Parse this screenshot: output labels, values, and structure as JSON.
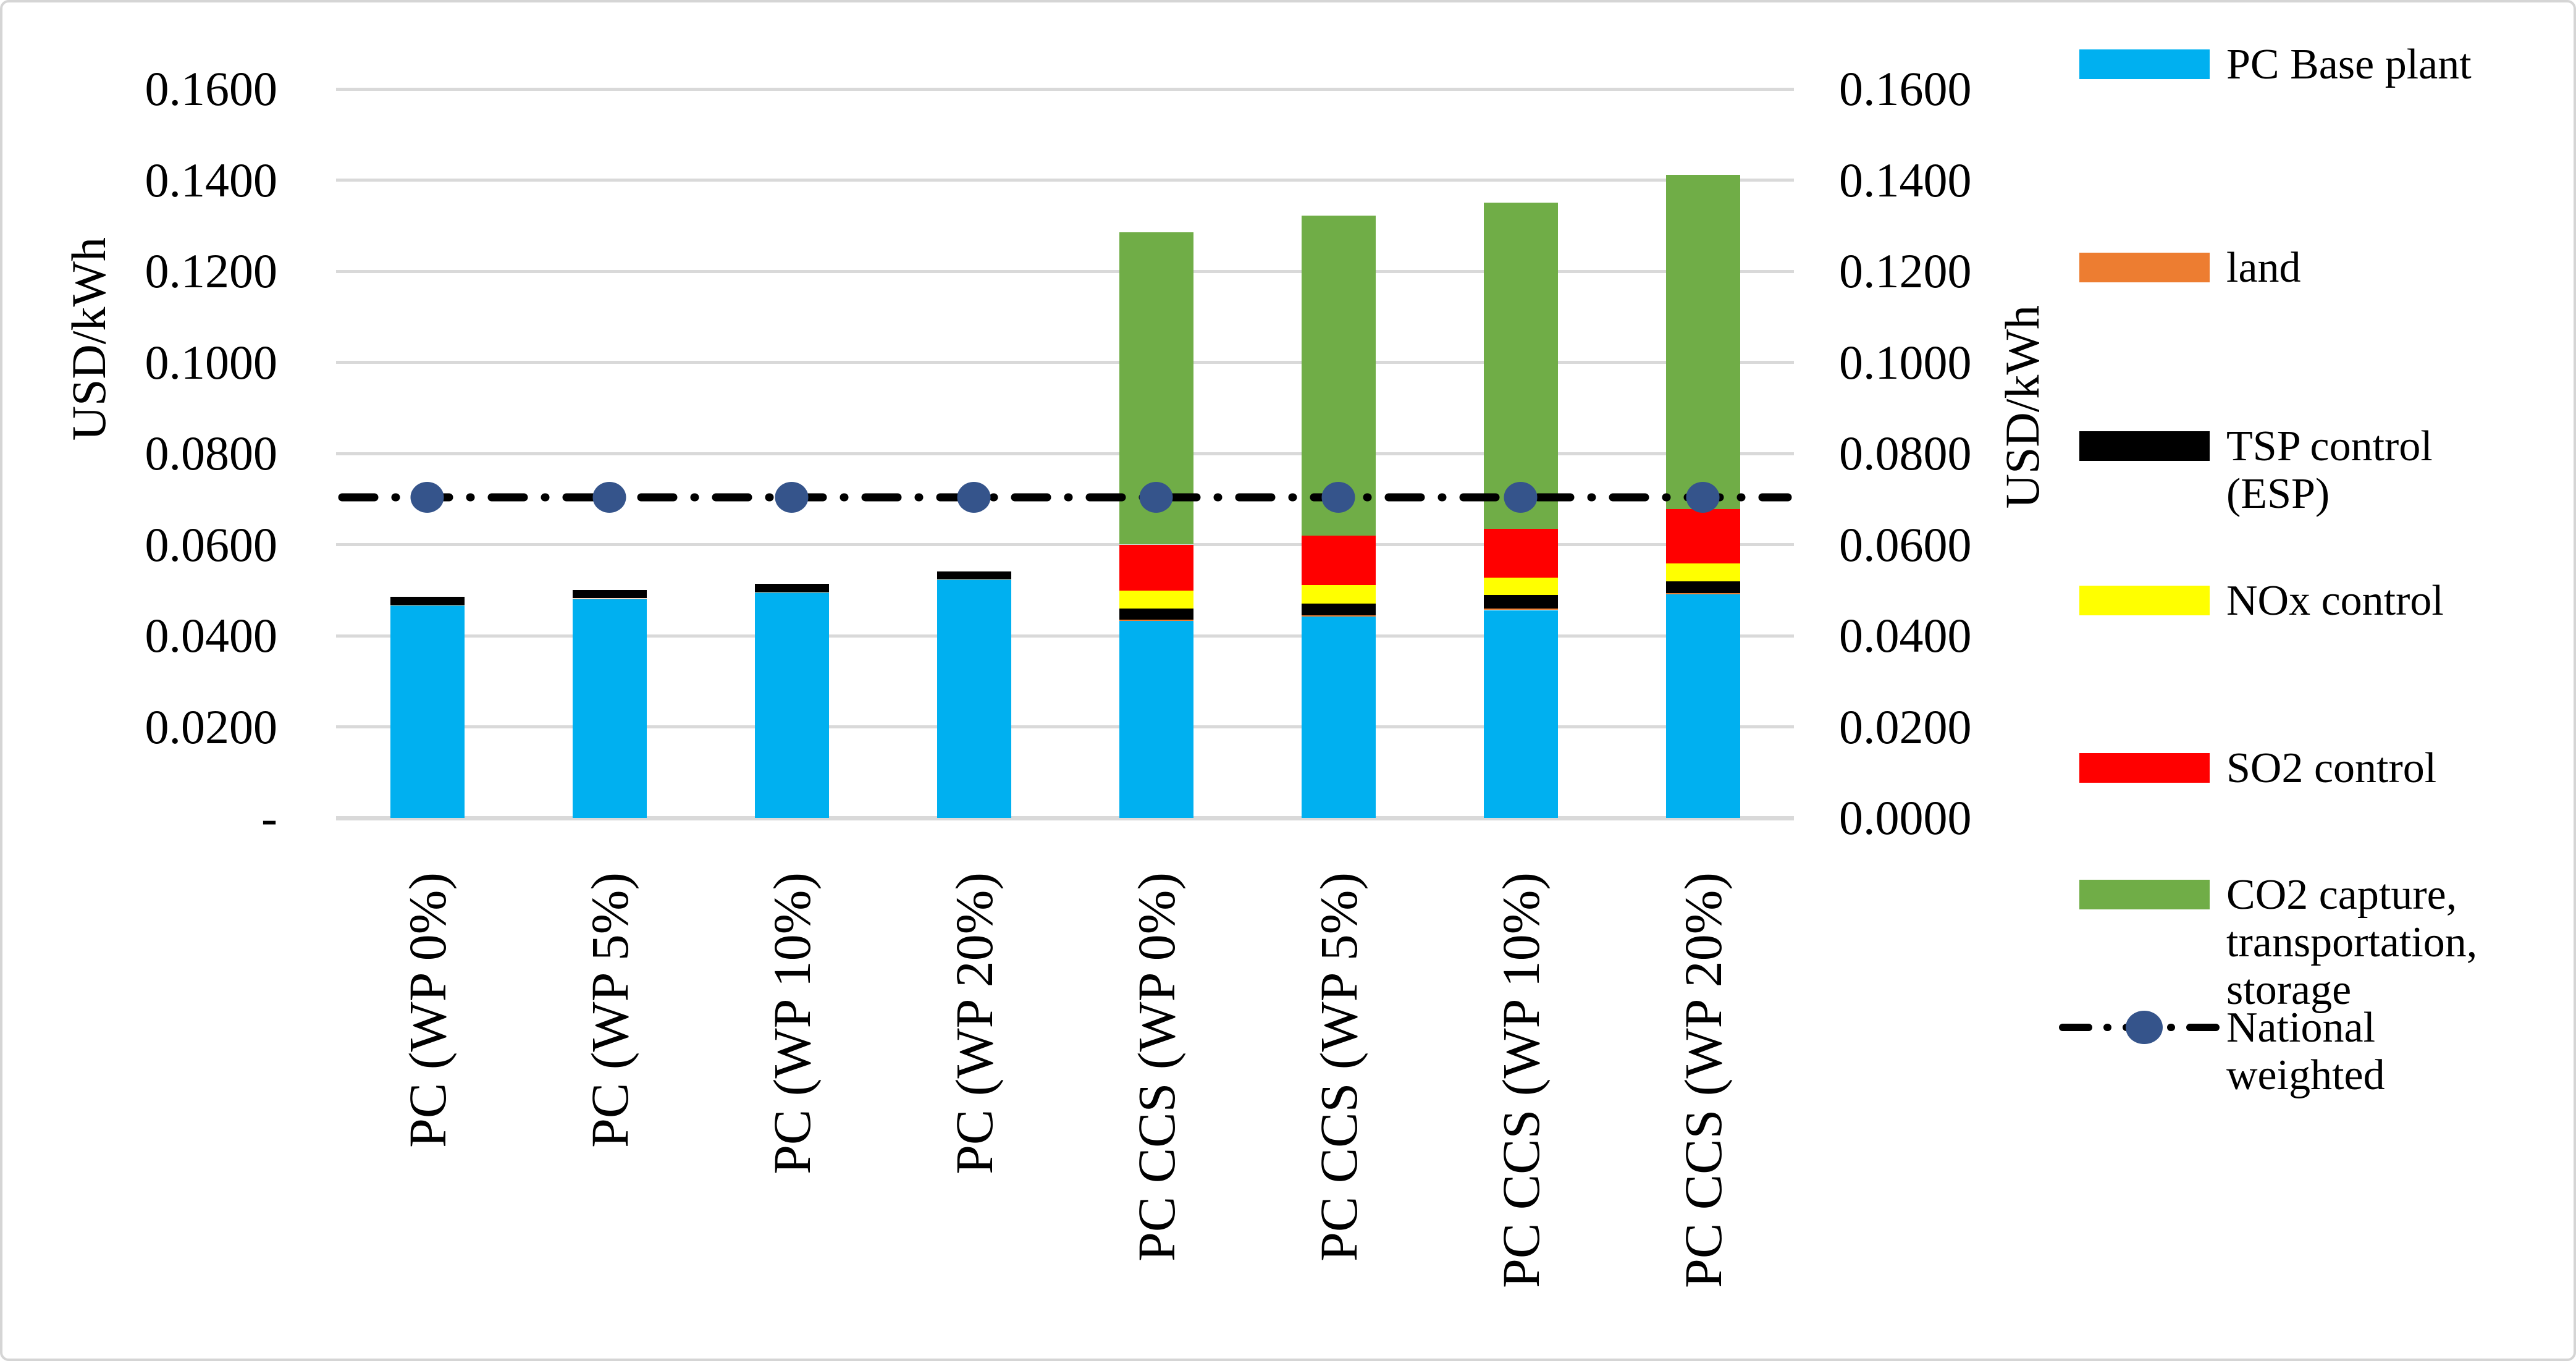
{
  "chart_data": {
    "type": "bar",
    "stacked": true,
    "title": "",
    "ylabel_left": "USD/kWh",
    "ylabel_right": "USD/kWh",
    "ylim": [
      0,
      0.16
    ],
    "ytick_step": 0.02,
    "grid": true,
    "legend_position": "right",
    "yticks_left": [
      "0.1600",
      "0.1400",
      "0.1200",
      "0.1000",
      "0.0800",
      "0.0600",
      "0.0400",
      "0.0200",
      "-"
    ],
    "yticks_right": [
      "0.1600",
      "0.1400",
      "0.1200",
      "0.1000",
      "0.0800",
      "0.0600",
      "0.0400",
      "0.0200",
      "0.0000"
    ],
    "categories": [
      "PC (WP 0%)",
      "PC (WP 5%)",
      "PC (WP 10%)",
      "PC (WP 20%)",
      "PC CCS (WP 0%)",
      "PC CCS (WP 5%)",
      "PC CCS (WP 10%)",
      "PC CCS (WP 20%)"
    ],
    "series": [
      {
        "name": "PC Base plant",
        "legend_label": "PC Base plant",
        "color": "#00B0F0",
        "values": [
          0.0467,
          0.0481,
          0.0495,
          0.0524,
          0.0432,
          0.0442,
          0.0456,
          0.0491
        ]
      },
      {
        "name": "land",
        "legend_label": "land",
        "color": "#ED7D31",
        "values": [
          0.0001,
          0.0001,
          0.0001,
          0.0001,
          0.0003,
          0.0003,
          0.0003,
          0.0003
        ]
      },
      {
        "name": "TSP control (ESP)",
        "legend_label": "TSP control\n(ESP)",
        "color": "#000000",
        "values": [
          0.0017,
          0.0018,
          0.0018,
          0.0016,
          0.0025,
          0.0026,
          0.003,
          0.0026
        ]
      },
      {
        "name": "NOx control",
        "legend_label": "NOx control",
        "color": "#FFFF00",
        "values": [
          0,
          0,
          0,
          0,
          0.004,
          0.004,
          0.0038,
          0.0039
        ]
      },
      {
        "name": "SO2 control",
        "legend_label": "SO2 control",
        "color": "#FF0000",
        "values": [
          0,
          0,
          0,
          0,
          0.01,
          0.0109,
          0.0107,
          0.0119
        ]
      },
      {
        "name": "CO2 capture, transportation, storage",
        "legend_label": "CO2 capture,\ntransportation,\nstorage",
        "color": "#70AD47",
        "values": [
          0,
          0,
          0,
          0,
          0.0685,
          0.0702,
          0.0716,
          0.0734
        ]
      }
    ],
    "line_series": {
      "name": "National weighted",
      "legend_label": "National\nweighted",
      "line_color": "#000000",
      "marker_color": "#35548B",
      "style": "dash-dot",
      "values": [
        0.0704,
        0.0704,
        0.0704,
        0.0704,
        0.0704,
        0.0704,
        0.0704,
        0.0704
      ]
    },
    "gridline_color": "#D9D9D9"
  }
}
